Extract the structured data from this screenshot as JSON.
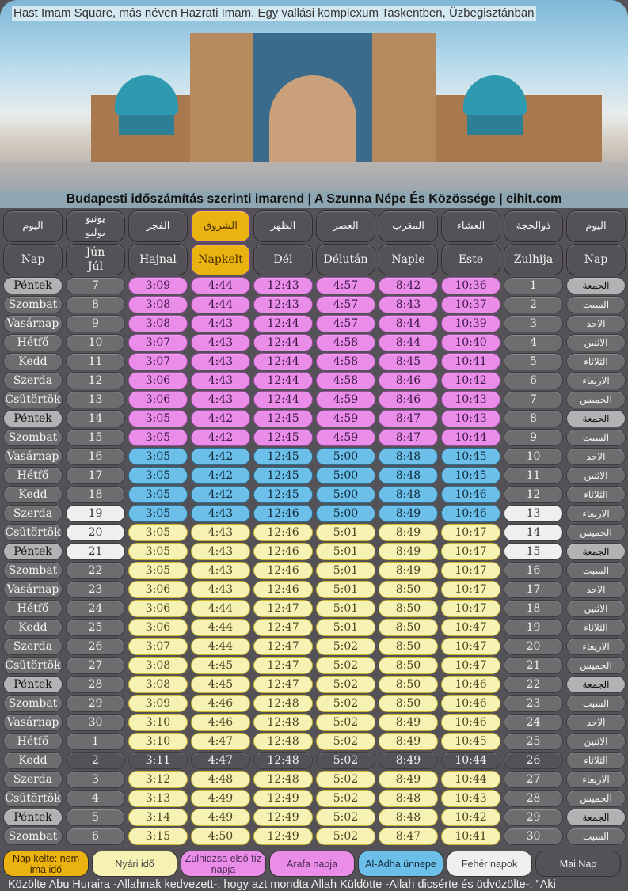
{
  "hero": {
    "caption": "Hast Imam Square, más néven Hazrati Imam. Egy vallási komplexum Taskentben, Üzbegisztánban"
  },
  "title": "Budapesti időszámítás szerinti imarend | A Szunna Népe És Közössége | eihit.com",
  "colors": {
    "pink": "#e98de9",
    "blue": "#6bbfe8",
    "yellow": "#f6f2b4",
    "white": "#efefef",
    "today": "#555257",
    "sunrise": "#ebb30f"
  },
  "header_ar": [
    "اليوم",
    "يونيو\nيوليو",
    "الفجر",
    "الشروق",
    "الظهر",
    "العصر",
    "المغرب",
    "العشاء",
    "ذوالحجة",
    "اليوم"
  ],
  "header_hu": [
    "Nap",
    "Jún\nJúl",
    "Hajnal",
    "Napkelt",
    "Dél",
    "Délután",
    "Naple",
    "Este",
    "Zulhija",
    "Nap"
  ],
  "rows": [
    {
      "day": "Péntek",
      "date": "7",
      "t": [
        "3:09",
        "4:44",
        "12:43",
        "4:57",
        "8:42",
        "10:36"
      ],
      "hijri": "1",
      "ar": "الجمعة",
      "type": "pink"
    },
    {
      "day": "Szombat",
      "date": "8",
      "t": [
        "3:08",
        "4:44",
        "12:43",
        "4:57",
        "8:43",
        "10:37"
      ],
      "hijri": "2",
      "ar": "السبت",
      "type": "pink"
    },
    {
      "day": "Vasárnap",
      "date": "9",
      "t": [
        "3:08",
        "4:43",
        "12:44",
        "4:57",
        "8:44",
        "10:39"
      ],
      "hijri": "3",
      "ar": "الاحد",
      "type": "pink"
    },
    {
      "day": "Hétfő",
      "date": "10",
      "t": [
        "3:07",
        "4:43",
        "12:44",
        "4:58",
        "8:44",
        "10:40"
      ],
      "hijri": "4",
      "ar": "الاثنين",
      "type": "pink"
    },
    {
      "day": "Kedd",
      "date": "11",
      "t": [
        "3:07",
        "4:43",
        "12:44",
        "4:58",
        "8:45",
        "10:41"
      ],
      "hijri": "5",
      "ar": "الثلاثاء",
      "type": "pink"
    },
    {
      "day": "Szerda",
      "date": "12",
      "t": [
        "3:06",
        "4:43",
        "12:44",
        "4:58",
        "8:46",
        "10:42"
      ],
      "hijri": "6",
      "ar": "الاربعاء",
      "type": "pink"
    },
    {
      "day": "Csütörtök",
      "date": "13",
      "t": [
        "3:06",
        "4:43",
        "12:44",
        "4:59",
        "8:46",
        "10:43"
      ],
      "hijri": "7",
      "ar": "الخميس",
      "type": "pink"
    },
    {
      "day": "Péntek",
      "date": "14",
      "t": [
        "3:05",
        "4:42",
        "12:45",
        "4:59",
        "8:47",
        "10:43"
      ],
      "hijri": "8",
      "ar": "الجمعة",
      "type": "pink"
    },
    {
      "day": "Szombat",
      "date": "15",
      "t": [
        "3:05",
        "4:42",
        "12:45",
        "4:59",
        "8:47",
        "10:44"
      ],
      "hijri": "9",
      "ar": "السبت",
      "type": "pink"
    },
    {
      "day": "Vasárnap",
      "date": "16",
      "t": [
        "3:05",
        "4:42",
        "12:45",
        "5:00",
        "8:48",
        "10:45"
      ],
      "hijri": "10",
      "ar": "الاحد",
      "type": "blue"
    },
    {
      "day": "Hétfő",
      "date": "17",
      "t": [
        "3:05",
        "4:42",
        "12:45",
        "5:00",
        "8:48",
        "10:45"
      ],
      "hijri": "11",
      "ar": "الاثنين",
      "type": "blue"
    },
    {
      "day": "Kedd",
      "date": "18",
      "t": [
        "3:05",
        "4:42",
        "12:45",
        "5:00",
        "8:48",
        "10:46"
      ],
      "hijri": "12",
      "ar": "الثلاثاء",
      "type": "blue"
    },
    {
      "day": "Szerda",
      "date": "19",
      "t": [
        "3:05",
        "4:43",
        "12:46",
        "5:00",
        "8:49",
        "10:46"
      ],
      "hijri": "13",
      "ar": "الاربعاء",
      "type": "blue",
      "white": true
    },
    {
      "day": "Csütörtök",
      "date": "20",
      "t": [
        "3:05",
        "4:43",
        "12:46",
        "5:01",
        "8:49",
        "10:47"
      ],
      "hijri": "14",
      "ar": "الخميس",
      "type": "yellow",
      "white": true
    },
    {
      "day": "Péntek",
      "date": "21",
      "t": [
        "3:05",
        "4:43",
        "12:46",
        "5:01",
        "8:49",
        "10:47"
      ],
      "hijri": "15",
      "ar": "الجمعة",
      "type": "yellow",
      "white": true
    },
    {
      "day": "Szombat",
      "date": "22",
      "t": [
        "3:05",
        "4:43",
        "12:46",
        "5:01",
        "8:49",
        "10:47"
      ],
      "hijri": "16",
      "ar": "السبت",
      "type": "yellow"
    },
    {
      "day": "Vasárnap",
      "date": "23",
      "t": [
        "3:06",
        "4:43",
        "12:46",
        "5:01",
        "8:50",
        "10:47"
      ],
      "hijri": "17",
      "ar": "الاحد",
      "type": "yellow"
    },
    {
      "day": "Hétfő",
      "date": "24",
      "t": [
        "3:06",
        "4:44",
        "12:47",
        "5:01",
        "8:50",
        "10:47"
      ],
      "hijri": "18",
      "ar": "الاثنين",
      "type": "yellow"
    },
    {
      "day": "Kedd",
      "date": "25",
      "t": [
        "3:06",
        "4:44",
        "12:47",
        "5:01",
        "8:50",
        "10:47"
      ],
      "hijri": "19",
      "ar": "الثلاثاء",
      "type": "yellow"
    },
    {
      "day": "Szerda",
      "date": "26",
      "t": [
        "3:07",
        "4:44",
        "12:47",
        "5:02",
        "8:50",
        "10:47"
      ],
      "hijri": "20",
      "ar": "الاربعاء",
      "type": "yellow"
    },
    {
      "day": "Csütörtök",
      "date": "27",
      "t": [
        "3:08",
        "4:45",
        "12:47",
        "5:02",
        "8:50",
        "10:47"
      ],
      "hijri": "21",
      "ar": "الخميس",
      "type": "yellow"
    },
    {
      "day": "Péntek",
      "date": "28",
      "t": [
        "3:08",
        "4:45",
        "12:47",
        "5:02",
        "8:50",
        "10:46"
      ],
      "hijri": "22",
      "ar": "الجمعة",
      "type": "yellow"
    },
    {
      "day": "Szombat",
      "date": "29",
      "t": [
        "3:09",
        "4:46",
        "12:48",
        "5:02",
        "8:50",
        "10:46"
      ],
      "hijri": "23",
      "ar": "السبت",
      "type": "yellow"
    },
    {
      "day": "Vasárnap",
      "date": "30",
      "t": [
        "3:10",
        "4:46",
        "12:48",
        "5:02",
        "8:49",
        "10:46"
      ],
      "hijri": "24",
      "ar": "الاحد",
      "type": "yellow"
    },
    {
      "day": "Hétfő",
      "date": "1",
      "t": [
        "3:10",
        "4:47",
        "12:48",
        "5:02",
        "8:49",
        "10:45"
      ],
      "hijri": "25",
      "ar": "الاثنين",
      "type": "yellow"
    },
    {
      "day": "Kedd",
      "date": "2",
      "t": [
        "3:11",
        "4:47",
        "12:48",
        "5:02",
        "8:49",
        "10:44"
      ],
      "hijri": "26",
      "ar": "الثلاثاء",
      "type": "today"
    },
    {
      "day": "Szerda",
      "date": "3",
      "t": [
        "3:12",
        "4:48",
        "12:48",
        "5:02",
        "8:49",
        "10:44"
      ],
      "hijri": "27",
      "ar": "الاربعاء",
      "type": "yellow"
    },
    {
      "day": "Csütörtök",
      "date": "4",
      "t": [
        "3:13",
        "4:49",
        "12:49",
        "5:02",
        "8:48",
        "10:43"
      ],
      "hijri": "28",
      "ar": "الخميس",
      "type": "yellow"
    },
    {
      "day": "Péntek",
      "date": "5",
      "t": [
        "3:14",
        "4:49",
        "12:49",
        "5:02",
        "8:48",
        "10:42"
      ],
      "hijri": "29",
      "ar": "الجمعة",
      "type": "yellow"
    },
    {
      "day": "Szombat",
      "date": "6",
      "t": [
        "3:15",
        "4:50",
        "12:49",
        "5:02",
        "8:47",
        "10:41"
      ],
      "hijri": "30",
      "ar": "السبت",
      "type": "yellow"
    }
  ],
  "legend": [
    {
      "label": "Nap kelte: nem ima idő",
      "color": "#ebb30f"
    },
    {
      "label": "Nyári idő",
      "color": "#f6f2b4"
    },
    {
      "label": "Zulhidzsa első tíz napja",
      "color": "#e98de9"
    },
    {
      "label": "Arafa napja",
      "color": "#e98de9"
    },
    {
      "label": "Al-Adha ünnepe",
      "color": "#6bbfe8"
    },
    {
      "label": "Fehér napok",
      "color": "#efefef"
    },
    {
      "label": "Mai Nap",
      "color": "#555257"
    }
  ],
  "quote": "Közölte Abu Huraira -Allahnak kedvezett-, hogy azt mondta Allah Küldötte -Allah dicsérte és üdvözölte-: \"Aki"
}
